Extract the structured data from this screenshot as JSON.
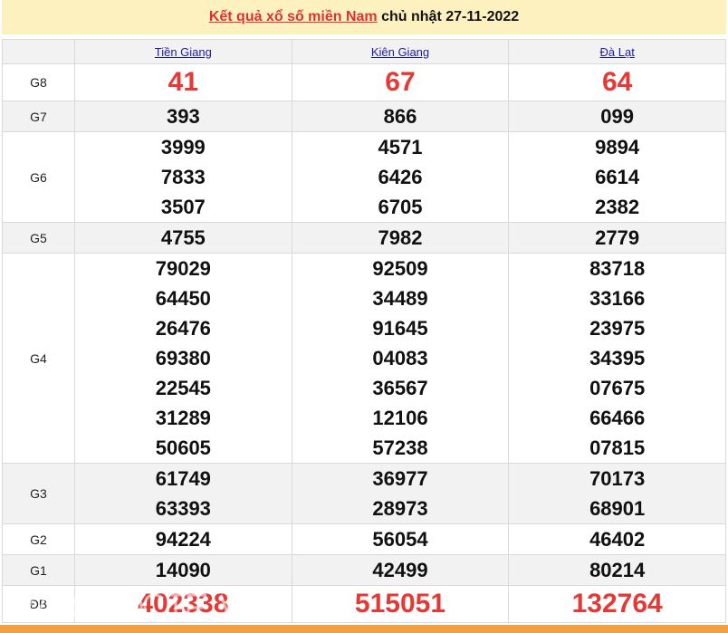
{
  "title": {
    "link": "Kết quả xổ số miền Nam",
    "rest": " chủ nhật 27-11-2022"
  },
  "provinces": [
    "Tiền Giang",
    "Kiên Giang",
    "Đà Lạt"
  ],
  "rows": [
    {
      "label": "G8",
      "big": true,
      "values": [
        [
          "41"
        ],
        [
          "67"
        ],
        [
          "64"
        ]
      ]
    },
    {
      "label": "G7",
      "values": [
        [
          "393"
        ],
        [
          "866"
        ],
        [
          "099"
        ]
      ]
    },
    {
      "label": "G6",
      "values": [
        [
          "3999",
          "7833",
          "3507"
        ],
        [
          "4571",
          "6426",
          "6705"
        ],
        [
          "9894",
          "6614",
          "2382"
        ]
      ]
    },
    {
      "label": "G5",
      "values": [
        [
          "4755"
        ],
        [
          "7982"
        ],
        [
          "2779"
        ]
      ]
    },
    {
      "label": "G4",
      "values": [
        [
          "79029",
          "64450",
          "26476",
          "69380",
          "22545",
          "31289",
          "50605"
        ],
        [
          "92509",
          "34489",
          "91645",
          "04083",
          "36567",
          "12106",
          "57238"
        ],
        [
          "83718",
          "33166",
          "23975",
          "34395",
          "07675",
          "66466",
          "07815"
        ]
      ]
    },
    {
      "label": "G3",
      "values": [
        [
          "61749",
          "63393"
        ],
        [
          "36977",
          "28973"
        ],
        [
          "70173",
          "68901"
        ]
      ]
    },
    {
      "label": "G2",
      "values": [
        [
          "94224"
        ],
        [
          "56054"
        ],
        [
          "46402"
        ]
      ]
    },
    {
      "label": "G1",
      "values": [
        [
          "14090"
        ],
        [
          "42499"
        ],
        [
          "80214"
        ]
      ]
    },
    {
      "label": "ĐB",
      "big": true,
      "values": [
        [
          "402338"
        ],
        [
          "515051"
        ],
        [
          "132764"
        ]
      ]
    }
  ],
  "watermark": "BAOQUOCTE.VN"
}
